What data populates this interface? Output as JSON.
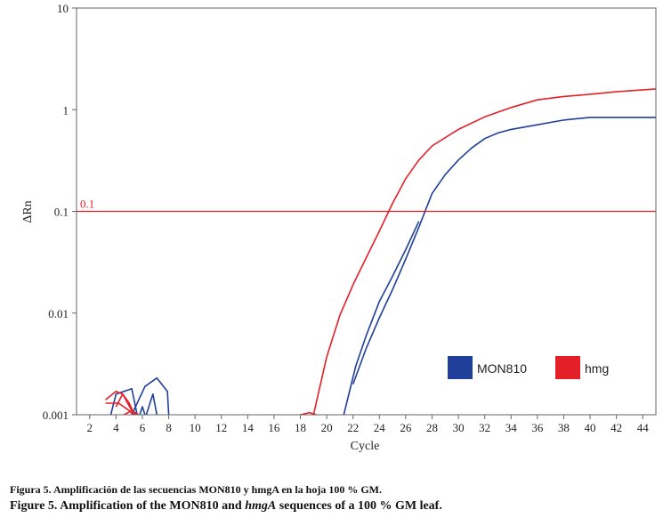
{
  "chart_data": {
    "type": "line",
    "xlabel": "Cycle",
    "ylabel": "ΔRn",
    "yscale": "log",
    "xlim": [
      1,
      45
    ],
    "ylim": [
      0.001,
      10
    ],
    "xticks": [
      "2",
      "4",
      "6",
      "8",
      "10",
      "12",
      "14",
      "16",
      "18",
      "20",
      "22",
      "24",
      "26",
      "28",
      "30",
      "32",
      "34",
      "36",
      "38",
      "40",
      "42",
      "44"
    ],
    "yticks": [
      "0.001",
      "0.01",
      "0.1",
      "1",
      "10"
    ],
    "threshold": {
      "label": "0.1",
      "value": 0.1
    },
    "legend_position": "lower-right",
    "series": [
      {
        "name": "MON810",
        "color": "#1f3f9a",
        "curves": [
          [
            [
              22,
              0.002
            ],
            [
              23,
              0.0045
            ],
            [
              24,
              0.009
            ],
            [
              25,
              0.017
            ],
            [
              26,
              0.034
            ],
            [
              27,
              0.07
            ],
            [
              28,
              0.15
            ],
            [
              29,
              0.23
            ],
            [
              30,
              0.32
            ],
            [
              31,
              0.42
            ],
            [
              32,
              0.52
            ],
            [
              33,
              0.59
            ],
            [
              34,
              0.64
            ],
            [
              36,
              0.71
            ],
            [
              38,
              0.79
            ],
            [
              40,
              0.84
            ],
            [
              45,
              0.84
            ]
          ],
          [
            [
              21.3,
              0.001
            ],
            [
              22.2,
              0.003
            ],
            [
              23,
              0.006
            ],
            [
              24,
              0.013
            ],
            [
              25,
              0.023
            ],
            [
              26,
              0.042
            ],
            [
              27,
              0.08
            ]
          ],
          [
            [
              3.6,
              0.001
            ],
            [
              4,
              0.0016
            ],
            [
              5.2,
              0.0018
            ],
            [
              5.6,
              0.001
            ]
          ],
          [
            [
              5.2,
              0.001
            ],
            [
              6.2,
              0.0019
            ],
            [
              7.1,
              0.0023
            ],
            [
              7.9,
              0.0017
            ],
            [
              8,
              0.001
            ]
          ],
          [
            [
              6.3,
              0.001
            ],
            [
              6.8,
              0.0016
            ],
            [
              7.1,
              0.001
            ]
          ],
          [
            [
              5.8,
              0.001
            ],
            [
              6,
              0.0012
            ],
            [
              6.2,
              0.001
            ]
          ]
        ]
      },
      {
        "name": "hmg",
        "color": "#e32027",
        "curves": [
          [
            [
              19,
              0.001
            ],
            [
              20,
              0.0037
            ],
            [
              21,
              0.0095
            ],
            [
              22,
              0.019
            ],
            [
              23,
              0.035
            ],
            [
              24,
              0.064
            ],
            [
              25,
              0.12
            ],
            [
              26,
              0.21
            ],
            [
              27,
              0.32
            ],
            [
              28,
              0.44
            ],
            [
              30,
              0.64
            ],
            [
              32,
              0.85
            ],
            [
              34,
              1.05
            ],
            [
              36,
              1.25
            ],
            [
              38,
              1.35
            ],
            [
              40,
              1.42
            ],
            [
              42,
              1.5
            ],
            [
              45,
              1.6
            ]
          ],
          [
            [
              18,
              0.001
            ],
            [
              18.7,
              0.00105
            ],
            [
              19.2,
              0.001
            ]
          ],
          [
            [
              3.2,
              0.0014
            ],
            [
              4,
              0.0017
            ],
            [
              4.5,
              0.0016
            ],
            [
              5,
              0.0013
            ],
            [
              5.4,
              0.001
            ]
          ],
          [
            [
              3.2,
              0.0013
            ],
            [
              4.2,
              0.0013
            ],
            [
              5,
              0.0011
            ],
            [
              5.3,
              0.001
            ]
          ],
          [
            [
              4,
              0.0012
            ],
            [
              4.5,
              0.0016
            ],
            [
              5.2,
              0.0011
            ],
            [
              5.5,
              0.001
            ]
          ],
          [
            [
              4.6,
              0.001
            ],
            [
              5.2,
              0.0011
            ],
            [
              5.7,
              0.001
            ]
          ]
        ]
      }
    ]
  },
  "caption": {
    "es": "Figura 5. Amplificación de las secuencias MON810 y hmgA en la hoja 100 % GM.",
    "en_prefix": "Figure 5. Amplification of the MON810 and ",
    "en_italic": "hmgA",
    "en_suffix": " sequences of a 100 % GM leaf."
  }
}
